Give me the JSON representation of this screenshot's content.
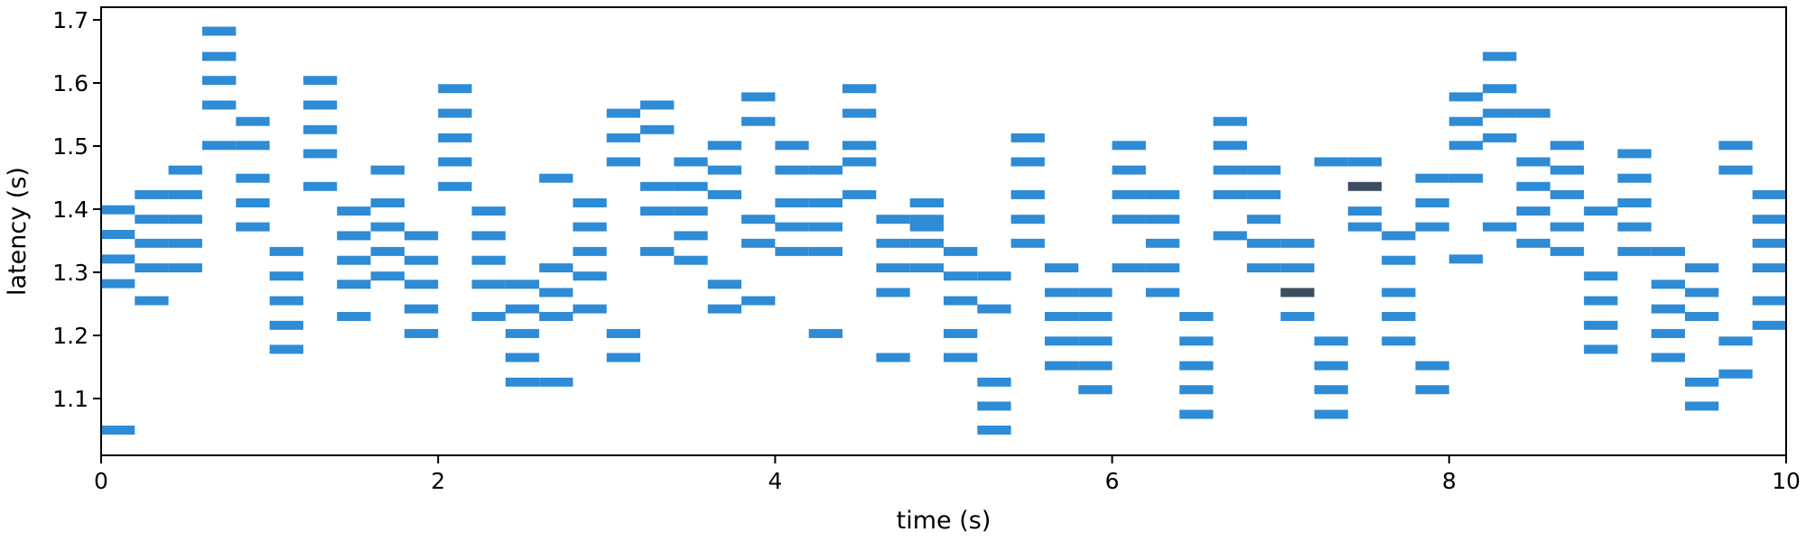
{
  "chart_data": {
    "type": "scatter",
    "marker": "horizontal-dash",
    "title": "",
    "xlabel": "time (s)",
    "ylabel": "latency (s)",
    "xlim": [
      0,
      10
    ],
    "ylim": [
      1.01,
      1.72
    ],
    "xticks": [
      0,
      2,
      4,
      6,
      8,
      10
    ],
    "yticks": [
      1.1,
      1.2,
      1.3,
      1.4,
      1.5,
      1.6,
      1.7
    ],
    "xtick_labels": [
      "0",
      "2",
      "4",
      "6",
      "8",
      "10"
    ],
    "ytick_labels": [
      "1.1",
      "1.2",
      "1.3",
      "1.4",
      "1.5",
      "1.6",
      "1.7"
    ],
    "grid": false,
    "legend": "none",
    "dash_width_s": 0.2,
    "colors": {
      "normal": "#2e8bd6",
      "highlight": "#3d4d61",
      "axis": "#000000"
    },
    "series": [
      {
        "color": "#2e8bd6",
        "points": [
          {
            "x": 0.1,
            "y": 1.399
          },
          {
            "x": 0.1,
            "y": 1.36
          },
          {
            "x": 0.1,
            "y": 1.321
          },
          {
            "x": 0.1,
            "y": 1.282
          },
          {
            "x": 0.1,
            "y": 1.05
          },
          {
            "x": 0.3,
            "y": 1.423
          },
          {
            "x": 0.3,
            "y": 1.384
          },
          {
            "x": 0.3,
            "y": 1.346
          },
          {
            "x": 0.3,
            "y": 1.307
          },
          {
            "x": 0.3,
            "y": 1.255
          },
          {
            "x": 0.5,
            "y": 1.462
          },
          {
            "x": 0.5,
            "y": 1.423
          },
          {
            "x": 0.5,
            "y": 1.384
          },
          {
            "x": 0.5,
            "y": 1.346
          },
          {
            "x": 0.5,
            "y": 1.307
          },
          {
            "x": 0.7,
            "y": 1.682
          },
          {
            "x": 0.7,
            "y": 1.642
          },
          {
            "x": 0.7,
            "y": 1.604
          },
          {
            "x": 0.7,
            "y": 1.565
          },
          {
            "x": 0.7,
            "y": 1.501
          },
          {
            "x": 0.9,
            "y": 1.539
          },
          {
            "x": 0.9,
            "y": 1.501
          },
          {
            "x": 0.9,
            "y": 1.449
          },
          {
            "x": 0.9,
            "y": 1.41
          },
          {
            "x": 0.9,
            "y": 1.372
          },
          {
            "x": 1.1,
            "y": 1.333
          },
          {
            "x": 1.1,
            "y": 1.294
          },
          {
            "x": 1.1,
            "y": 1.255
          },
          {
            "x": 1.1,
            "y": 1.216
          },
          {
            "x": 1.1,
            "y": 1.178
          },
          {
            "x": 1.3,
            "y": 1.604
          },
          {
            "x": 1.3,
            "y": 1.565
          },
          {
            "x": 1.3,
            "y": 1.526
          },
          {
            "x": 1.3,
            "y": 1.488
          },
          {
            "x": 1.3,
            "y": 1.436
          },
          {
            "x": 1.5,
            "y": 1.397
          },
          {
            "x": 1.5,
            "y": 1.358
          },
          {
            "x": 1.5,
            "y": 1.319
          },
          {
            "x": 1.5,
            "y": 1.281
          },
          {
            "x": 1.5,
            "y": 1.23
          },
          {
            "x": 1.7,
            "y": 1.462
          },
          {
            "x": 1.7,
            "y": 1.41
          },
          {
            "x": 1.7,
            "y": 1.372
          },
          {
            "x": 1.7,
            "y": 1.333
          },
          {
            "x": 1.7,
            "y": 1.294
          },
          {
            "x": 1.9,
            "y": 1.358
          },
          {
            "x": 1.9,
            "y": 1.319
          },
          {
            "x": 1.9,
            "y": 1.281
          },
          {
            "x": 1.9,
            "y": 1.242
          },
          {
            "x": 1.9,
            "y": 1.203
          },
          {
            "x": 2.1,
            "y": 1.591
          },
          {
            "x": 2.1,
            "y": 1.552
          },
          {
            "x": 2.1,
            "y": 1.513
          },
          {
            "x": 2.1,
            "y": 1.475
          },
          {
            "x": 2.1,
            "y": 1.436
          },
          {
            "x": 2.3,
            "y": 1.397
          },
          {
            "x": 2.3,
            "y": 1.358
          },
          {
            "x": 2.3,
            "y": 1.319
          },
          {
            "x": 2.3,
            "y": 1.281
          },
          {
            "x": 2.3,
            "y": 1.23
          },
          {
            "x": 2.5,
            "y": 1.281
          },
          {
            "x": 2.5,
            "y": 1.242
          },
          {
            "x": 2.5,
            "y": 1.203
          },
          {
            "x": 2.5,
            "y": 1.165
          },
          {
            "x": 2.5,
            "y": 1.126
          },
          {
            "x": 2.7,
            "y": 1.449
          },
          {
            "x": 2.7,
            "y": 1.307
          },
          {
            "x": 2.7,
            "y": 1.268
          },
          {
            "x": 2.7,
            "y": 1.23
          },
          {
            "x": 2.7,
            "y": 1.126
          },
          {
            "x": 2.9,
            "y": 1.41
          },
          {
            "x": 2.9,
            "y": 1.372
          },
          {
            "x": 2.9,
            "y": 1.333
          },
          {
            "x": 2.9,
            "y": 1.294
          },
          {
            "x": 2.9,
            "y": 1.242
          },
          {
            "x": 3.1,
            "y": 1.552
          },
          {
            "x": 3.1,
            "y": 1.513
          },
          {
            "x": 3.1,
            "y": 1.475
          },
          {
            "x": 3.1,
            "y": 1.203
          },
          {
            "x": 3.1,
            "y": 1.165
          },
          {
            "x": 3.3,
            "y": 1.565
          },
          {
            "x": 3.3,
            "y": 1.526
          },
          {
            "x": 3.3,
            "y": 1.436
          },
          {
            "x": 3.3,
            "y": 1.397
          },
          {
            "x": 3.3,
            "y": 1.333
          },
          {
            "x": 3.5,
            "y": 1.475
          },
          {
            "x": 3.5,
            "y": 1.436
          },
          {
            "x": 3.5,
            "y": 1.397
          },
          {
            "x": 3.5,
            "y": 1.358
          },
          {
            "x": 3.5,
            "y": 1.319
          },
          {
            "x": 3.7,
            "y": 1.501
          },
          {
            "x": 3.7,
            "y": 1.462
          },
          {
            "x": 3.7,
            "y": 1.423
          },
          {
            "x": 3.7,
            "y": 1.281
          },
          {
            "x": 3.7,
            "y": 1.242
          },
          {
            "x": 3.9,
            "y": 1.578
          },
          {
            "x": 3.9,
            "y": 1.539
          },
          {
            "x": 3.9,
            "y": 1.384
          },
          {
            "x": 3.9,
            "y": 1.346
          },
          {
            "x": 3.9,
            "y": 1.255
          },
          {
            "x": 4.1,
            "y": 1.501
          },
          {
            "x": 4.1,
            "y": 1.462
          },
          {
            "x": 4.1,
            "y": 1.41
          },
          {
            "x": 4.1,
            "y": 1.372
          },
          {
            "x": 4.1,
            "y": 1.333
          },
          {
            "x": 4.3,
            "y": 1.462
          },
          {
            "x": 4.3,
            "y": 1.41
          },
          {
            "x": 4.3,
            "y": 1.372
          },
          {
            "x": 4.3,
            "y": 1.333
          },
          {
            "x": 4.3,
            "y": 1.203
          },
          {
            "x": 4.5,
            "y": 1.591
          },
          {
            "x": 4.5,
            "y": 1.552
          },
          {
            "x": 4.5,
            "y": 1.501
          },
          {
            "x": 4.5,
            "y": 1.475
          },
          {
            "x": 4.5,
            "y": 1.423
          },
          {
            "x": 4.7,
            "y": 1.384
          },
          {
            "x": 4.7,
            "y": 1.346
          },
          {
            "x": 4.7,
            "y": 1.307
          },
          {
            "x": 4.7,
            "y": 1.268
          },
          {
            "x": 4.7,
            "y": 1.165
          },
          {
            "x": 4.9,
            "y": 1.41
          },
          {
            "x": 4.9,
            "y": 1.384
          },
          {
            "x": 4.9,
            "y": 1.372
          },
          {
            "x": 4.9,
            "y": 1.346
          },
          {
            "x": 4.9,
            "y": 1.307
          },
          {
            "x": 5.1,
            "y": 1.333
          },
          {
            "x": 5.1,
            "y": 1.294
          },
          {
            "x": 5.1,
            "y": 1.255
          },
          {
            "x": 5.1,
            "y": 1.203
          },
          {
            "x": 5.1,
            "y": 1.165
          },
          {
            "x": 5.3,
            "y": 1.294
          },
          {
            "x": 5.3,
            "y": 1.242
          },
          {
            "x": 5.3,
            "y": 1.126
          },
          {
            "x": 5.3,
            "y": 1.088
          },
          {
            "x": 5.3,
            "y": 1.05
          },
          {
            "x": 5.5,
            "y": 1.513
          },
          {
            "x": 5.5,
            "y": 1.475
          },
          {
            "x": 5.5,
            "y": 1.423
          },
          {
            "x": 5.5,
            "y": 1.384
          },
          {
            "x": 5.5,
            "y": 1.346
          },
          {
            "x": 5.7,
            "y": 1.307
          },
          {
            "x": 5.7,
            "y": 1.268
          },
          {
            "x": 5.7,
            "y": 1.23
          },
          {
            "x": 5.7,
            "y": 1.191
          },
          {
            "x": 5.7,
            "y": 1.152
          },
          {
            "x": 5.9,
            "y": 1.268
          },
          {
            "x": 5.9,
            "y": 1.23
          },
          {
            "x": 5.9,
            "y": 1.191
          },
          {
            "x": 5.9,
            "y": 1.152
          },
          {
            "x": 5.9,
            "y": 1.114
          },
          {
            "x": 6.1,
            "y": 1.501
          },
          {
            "x": 6.1,
            "y": 1.462
          },
          {
            "x": 6.1,
            "y": 1.423
          },
          {
            "x": 6.1,
            "y": 1.384
          },
          {
            "x": 6.1,
            "y": 1.307
          },
          {
            "x": 6.3,
            "y": 1.423
          },
          {
            "x": 6.3,
            "y": 1.384
          },
          {
            "x": 6.3,
            "y": 1.346
          },
          {
            "x": 6.3,
            "y": 1.307
          },
          {
            "x": 6.3,
            "y": 1.268
          },
          {
            "x": 6.5,
            "y": 1.23
          },
          {
            "x": 6.5,
            "y": 1.191
          },
          {
            "x": 6.5,
            "y": 1.152
          },
          {
            "x": 6.5,
            "y": 1.114
          },
          {
            "x": 6.5,
            "y": 1.075
          },
          {
            "x": 6.7,
            "y": 1.539
          },
          {
            "x": 6.7,
            "y": 1.501
          },
          {
            "x": 6.7,
            "y": 1.462
          },
          {
            "x": 6.7,
            "y": 1.423
          },
          {
            "x": 6.7,
            "y": 1.358
          },
          {
            "x": 6.9,
            "y": 1.462
          },
          {
            "x": 6.9,
            "y": 1.423
          },
          {
            "x": 6.9,
            "y": 1.384
          },
          {
            "x": 6.9,
            "y": 1.346
          },
          {
            "x": 6.9,
            "y": 1.307
          },
          {
            "x": 7.1,
            "y": 1.346
          },
          {
            "x": 7.1,
            "y": 1.307
          },
          {
            "x": 7.1,
            "y": 1.23
          },
          {
            "x": 7.3,
            "y": 1.475
          },
          {
            "x": 7.3,
            "y": 1.191
          },
          {
            "x": 7.3,
            "y": 1.152
          },
          {
            "x": 7.3,
            "y": 1.114
          },
          {
            "x": 7.3,
            "y": 1.075
          },
          {
            "x": 7.5,
            "y": 1.475
          },
          {
            "x": 7.5,
            "y": 1.397
          },
          {
            "x": 7.5,
            "y": 1.372
          },
          {
            "x": 7.7,
            "y": 1.358
          },
          {
            "x": 7.7,
            "y": 1.319
          },
          {
            "x": 7.7,
            "y": 1.268
          },
          {
            "x": 7.7,
            "y": 1.23
          },
          {
            "x": 7.7,
            "y": 1.191
          },
          {
            "x": 7.9,
            "y": 1.449
          },
          {
            "x": 7.9,
            "y": 1.41
          },
          {
            "x": 7.9,
            "y": 1.372
          },
          {
            "x": 7.9,
            "y": 1.152
          },
          {
            "x": 7.9,
            "y": 1.114
          },
          {
            "x": 8.1,
            "y": 1.578
          },
          {
            "x": 8.1,
            "y": 1.539
          },
          {
            "x": 8.1,
            "y": 1.501
          },
          {
            "x": 8.1,
            "y": 1.449
          },
          {
            "x": 8.1,
            "y": 1.321
          },
          {
            "x": 8.3,
            "y": 1.642
          },
          {
            "x": 8.3,
            "y": 1.591
          },
          {
            "x": 8.3,
            "y": 1.552
          },
          {
            "x": 8.3,
            "y": 1.513
          },
          {
            "x": 8.3,
            "y": 1.372
          },
          {
            "x": 8.5,
            "y": 1.552
          },
          {
            "x": 8.5,
            "y": 1.475
          },
          {
            "x": 8.5,
            "y": 1.436
          },
          {
            "x": 8.5,
            "y": 1.397
          },
          {
            "x": 8.5,
            "y": 1.346
          },
          {
            "x": 8.7,
            "y": 1.501
          },
          {
            "x": 8.7,
            "y": 1.462
          },
          {
            "x": 8.7,
            "y": 1.423
          },
          {
            "x": 8.7,
            "y": 1.372
          },
          {
            "x": 8.7,
            "y": 1.333
          },
          {
            "x": 8.9,
            "y": 1.397
          },
          {
            "x": 8.9,
            "y": 1.294
          },
          {
            "x": 8.9,
            "y": 1.255
          },
          {
            "x": 8.9,
            "y": 1.216
          },
          {
            "x": 8.9,
            "y": 1.178
          },
          {
            "x": 9.1,
            "y": 1.488
          },
          {
            "x": 9.1,
            "y": 1.449
          },
          {
            "x": 9.1,
            "y": 1.41
          },
          {
            "x": 9.1,
            "y": 1.372
          },
          {
            "x": 9.1,
            "y": 1.333
          },
          {
            "x": 9.3,
            "y": 1.333
          },
          {
            "x": 9.3,
            "y": 1.281
          },
          {
            "x": 9.3,
            "y": 1.242
          },
          {
            "x": 9.3,
            "y": 1.203
          },
          {
            "x": 9.3,
            "y": 1.165
          },
          {
            "x": 9.5,
            "y": 1.307
          },
          {
            "x": 9.5,
            "y": 1.268
          },
          {
            "x": 9.5,
            "y": 1.23
          },
          {
            "x": 9.5,
            "y": 1.126
          },
          {
            "x": 9.5,
            "y": 1.088
          },
          {
            "x": 9.7,
            "y": 1.501
          },
          {
            "x": 9.7,
            "y": 1.462
          },
          {
            "x": 9.7,
            "y": 1.191
          },
          {
            "x": 9.7,
            "y": 1.139
          },
          {
            "x": 9.9,
            "y": 1.423
          },
          {
            "x": 9.9,
            "y": 1.384
          },
          {
            "x": 9.9,
            "y": 1.346
          },
          {
            "x": 9.9,
            "y": 1.307
          },
          {
            "x": 9.9,
            "y": 1.255
          },
          {
            "x": 9.9,
            "y": 1.216
          }
        ]
      },
      {
        "color": "#3d4d61",
        "points": [
          {
            "x": 7.1,
            "y": 1.268
          },
          {
            "x": 7.5,
            "y": 1.436
          }
        ]
      }
    ]
  }
}
